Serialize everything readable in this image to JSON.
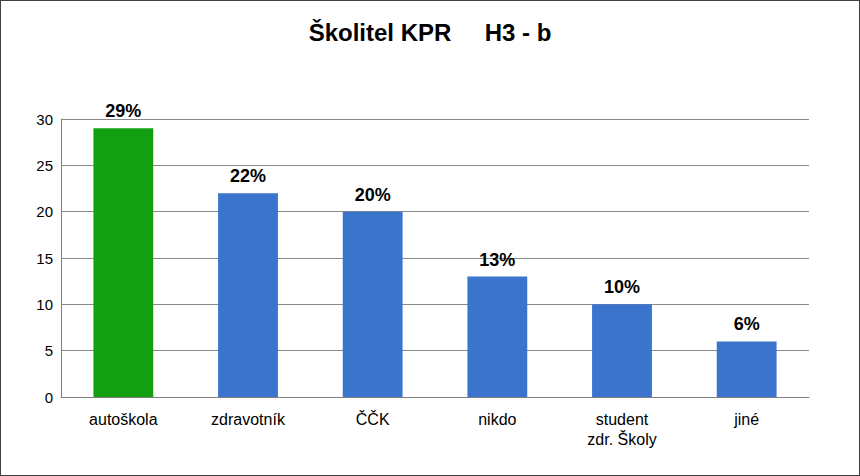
{
  "chart_data": {
    "type": "bar",
    "title": "Školitel KPR     H3 - b",
    "categories": [
      "autoškola",
      "zdravotník",
      "ČČK",
      "nikdo",
      "student\nzdr. Školy",
      "jiné"
    ],
    "values": [
      29,
      22,
      20,
      13,
      10,
      6
    ],
    "value_labels": [
      "29%",
      "22%",
      "20%",
      "13%",
      "10%",
      "6%"
    ],
    "colors": [
      "#12a012",
      "#3a74cc",
      "#3a74cc",
      "#3a74cc",
      "#3a74cc",
      "#3a74cc"
    ],
    "ylim": [
      0,
      30
    ],
    "yticks": [
      0,
      5,
      10,
      15,
      20,
      25,
      30
    ],
    "grid": true,
    "data_labels": true
  }
}
